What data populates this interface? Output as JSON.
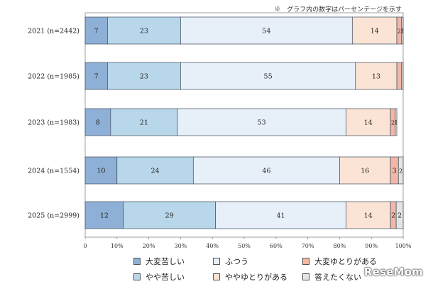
{
  "note": "※　グラフ内の数字はパーセンテージを示す",
  "chart_data": {
    "type": "bar",
    "orientation": "horizontal",
    "stacked": true,
    "categories": [
      "2021 (n=2442)",
      "2022 (n=1985)",
      "2023 (n=1983)",
      "2024 (n=1554)",
      "2025 (n=2999)"
    ],
    "xlim": [
      0,
      100
    ],
    "xticks": [
      "0",
      "10%",
      "20%",
      "30%",
      "40%",
      "50%",
      "60%",
      "70%",
      "80%",
      "90%",
      "100%"
    ],
    "series": [
      {
        "name": "大変苦しい",
        "color": "#8fb0d6",
        "values": [
          7,
          7,
          8,
          10,
          12
        ],
        "labels": [
          "7",
          "7",
          "8",
          "10",
          "12"
        ]
      },
      {
        "name": "やや苦しい",
        "color": "#b9d7ea",
        "values": [
          23,
          23,
          21,
          24,
          29
        ],
        "labels": [
          "23",
          "23",
          "21",
          "24",
          "29"
        ]
      },
      {
        "name": "ふつう",
        "color": "#e7eff8",
        "values": [
          54,
          55,
          53,
          46,
          41
        ],
        "labels": [
          "54",
          "55",
          "53",
          "46",
          "41"
        ]
      },
      {
        "name": "ややゆとりがある",
        "color": "#fbe4d5",
        "values": [
          14,
          13,
          14,
          16,
          14
        ],
        "labels": [
          "14",
          "13",
          "14",
          "16",
          "14"
        ]
      },
      {
        "name": "大変ゆとりがある",
        "color": "#f4b7a6",
        "values": [
          1.5,
          1.5,
          1.5,
          2.5,
          1.8
        ],
        "labels": [
          "2",
          "",
          "2",
          "3",
          "2"
        ]
      },
      {
        "name": "答えたくない",
        "color": "#e4e4e4",
        "values": [
          0.5,
          0.5,
          0.5,
          1.5,
          2.2
        ],
        "labels": [
          "1",
          "",
          "1",
          "2",
          "2"
        ]
      }
    ],
    "legend_order": [
      "大変苦しい",
      "ふつう",
      "大変ゆとりがある",
      "やや苦しい",
      "ややゆとりがある",
      "答えたくない"
    ],
    "legend_position": "bottom",
    "grid": false
  },
  "logo": "ReseMom"
}
